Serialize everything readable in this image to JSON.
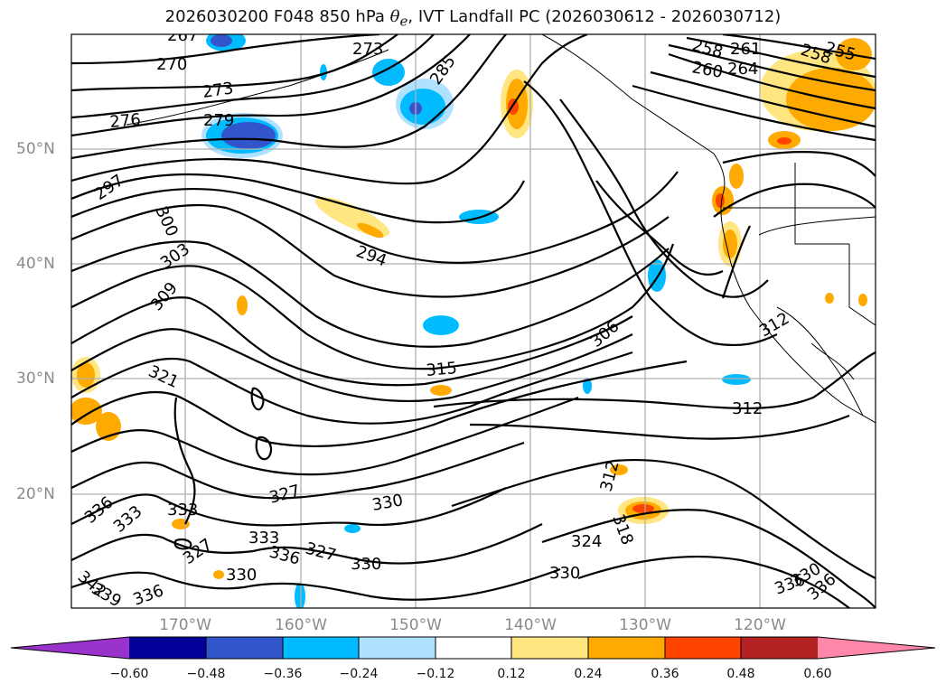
{
  "title": {
    "prefix": "2026030200 F048 850 hPa ",
    "symbol": "θ",
    "subscript": "e",
    "suffix": ", IVT Landfall PC (2026030612 - 2026030712)"
  },
  "map": {
    "lat_labels": [
      "50°N",
      "40°N",
      "30°N",
      "20°N"
    ],
    "lon_labels": [
      "170°W",
      "160°W",
      "150°W",
      "140°W",
      "130°W",
      "120°W"
    ],
    "contour_labels": [
      "267",
      "270",
      "273",
      "276",
      "279",
      "273",
      "285",
      "258",
      "261",
      "264",
      "258",
      "255",
      "260",
      "297",
      "300",
      "303",
      "309",
      "294",
      "321",
      "315",
      "306",
      "312",
      "312",
      "312",
      "318",
      "324",
      "330",
      "336",
      "333",
      "333",
      "327",
      "330",
      "327",
      "330",
      "333",
      "336",
      "327",
      "330",
      "336",
      "339",
      "342",
      "336",
      "330",
      "336"
    ],
    "fill_colors": [
      "#9933cc",
      "#000099",
      "#3355cc",
      "#00bbff",
      "#b0e2ff",
      "#ffffff",
      "#ffe680",
      "#ffaa00",
      "#ff4400",
      "#b22222",
      "#ff88aa"
    ]
  },
  "colorbar": {
    "ticks": [
      "−0.60",
      "−0.48",
      "−0.36",
      "−0.24",
      "−0.12",
      "0.12",
      "0.24",
      "0.36",
      "0.48",
      "0.60"
    ],
    "colors": [
      "#9933cc",
      "#000099",
      "#3355cc",
      "#00bbff",
      "#b0e2ff",
      "#ffffff",
      "#ffe680",
      "#ffaa00",
      "#ff4400",
      "#b22222",
      "#ff88aa"
    ]
  }
}
